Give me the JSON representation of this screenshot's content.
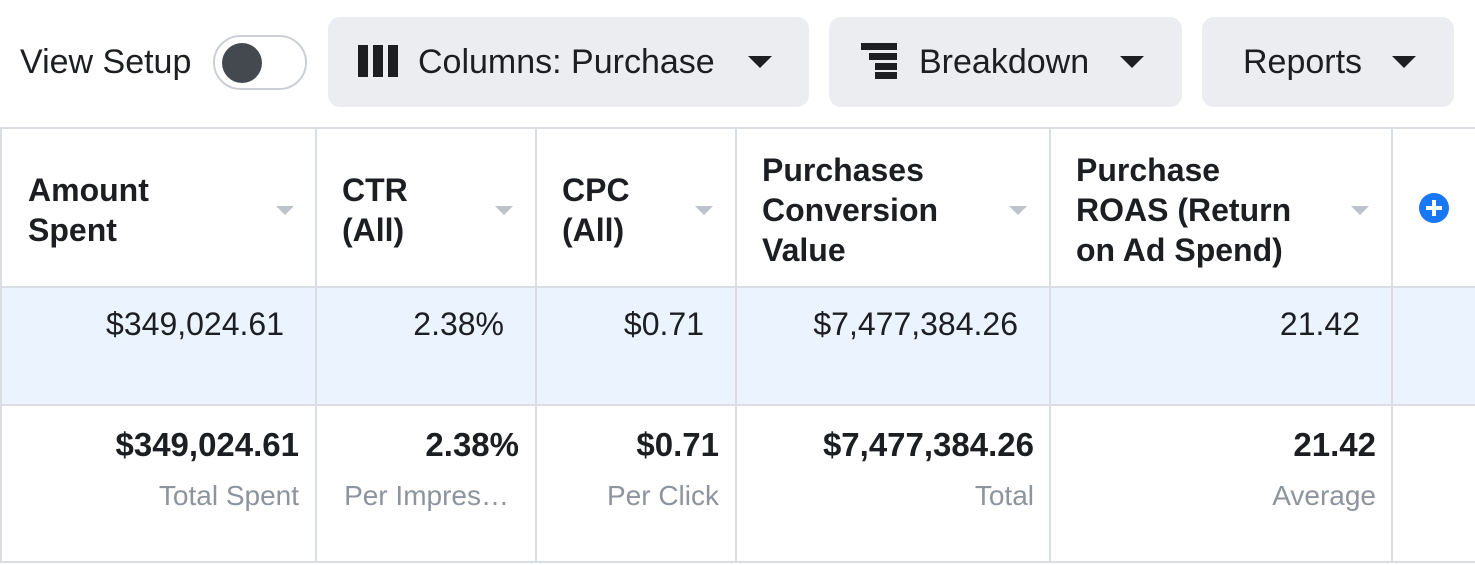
{
  "toolbar": {
    "view_setup_label": "View Setup",
    "view_setup_toggle_on": false,
    "columns_label": "Columns: Purchase",
    "breakdown_label": "Breakdown",
    "reports_label": "Reports"
  },
  "table": {
    "headers": [
      "Amount\nSpent",
      "CTR\n(All)",
      "CPC\n(All)",
      "Purchases\nConversion\nValue",
      "Purchase\nROAS (Return\non Ad Spend)"
    ],
    "rows": [
      [
        "$349,024.61",
        "2.38%",
        "$0.71",
        "$7,477,384.26",
        "21.42"
      ]
    ],
    "summary": {
      "values": [
        "$349,024.61",
        "2.38%",
        "$0.71",
        "$7,477,384.26",
        "21.42"
      ],
      "labels": [
        "Total Spent",
        "Per Impres…",
        "Per Click",
        "Total",
        "Average"
      ]
    }
  },
  "colors": {
    "accent": "#1877f2",
    "button_bg": "#ebedf0",
    "row_highlight": "#ebf3ff",
    "muted_text": "#8d949e"
  }
}
